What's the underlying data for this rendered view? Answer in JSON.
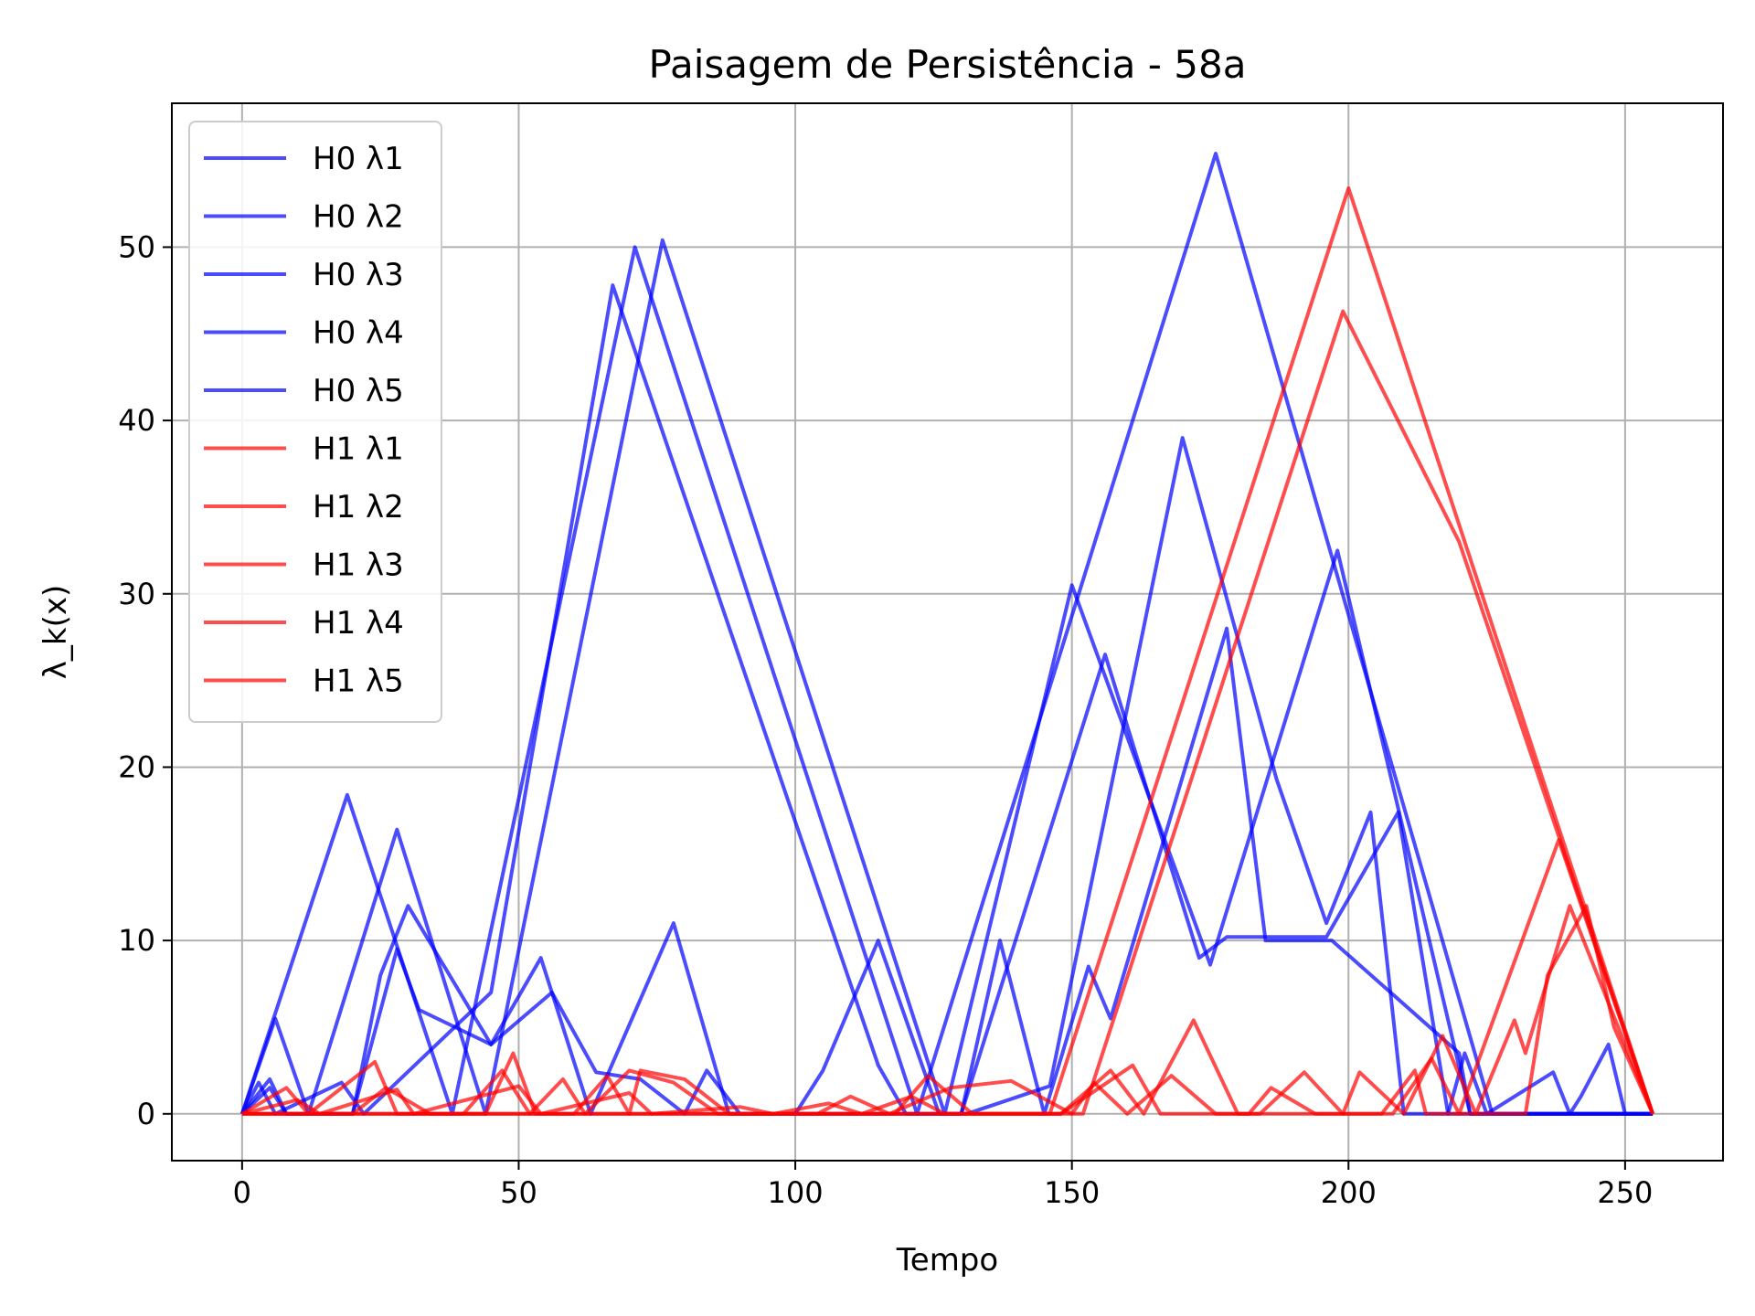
{
  "chart_data": {
    "type": "line",
    "title": "Paisagem de Persistência - 58a",
    "xlabel": "Tempo",
    "ylabel": "λ_k(x)",
    "xlim": [
      -12.7,
      267.7
    ],
    "ylim": [
      -2.7,
      58.3
    ],
    "xticks": [
      0,
      50,
      100,
      150,
      200,
      250
    ],
    "yticks": [
      0,
      10,
      20,
      30,
      40,
      50
    ],
    "grid": true,
    "legend_position": "upper-left",
    "colors": {
      "H0": "#0000ff",
      "H1": "#ff0000",
      "grid": "#b0b0b0",
      "axes": "#000000"
    },
    "line_opacity": 0.7,
    "series": [
      {
        "name": "H0 λ1",
        "group": "H0",
        "x": [
          0,
          19,
          38,
          71,
          122,
          176,
          226,
          255
        ],
        "y": [
          0,
          18.4,
          0,
          50,
          0,
          55.4,
          0,
          0
        ]
      },
      {
        "name": "H0 λ2",
        "group": "H0",
        "x": [
          0,
          6,
          12,
          28,
          44,
          76,
          127,
          150,
          175,
          198,
          222,
          255
        ],
        "y": [
          0,
          5.5,
          0,
          16.4,
          0,
          50.4,
          0,
          30.5,
          8.6,
          32.5,
          0,
          0
        ]
      },
      {
        "name": "H0 λ3",
        "group": "H0",
        "x": [
          0,
          3,
          6,
          18,
          22,
          45,
          67,
          115,
          120,
          126,
          130,
          156,
          173,
          178,
          196,
          209,
          218,
          255
        ],
        "y": [
          0,
          1.8,
          0,
          1.8,
          0,
          7,
          47.8,
          2.8,
          0,
          0,
          0,
          26.5,
          9,
          10.2,
          10.2,
          17.4,
          0,
          0
        ]
      },
      {
        "name": "H0 λ4",
        "group": "H0",
        "x": [
          0,
          5,
          8,
          20,
          28,
          32,
          45,
          54,
          63,
          78,
          88,
          100,
          105,
          115,
          126,
          131,
          146,
          170,
          187,
          196,
          204,
          210,
          212,
          214,
          216,
          218,
          221,
          225,
          237,
          240,
          242,
          247,
          250,
          255
        ],
        "y": [
          0,
          2,
          0,
          0,
          9.5,
          6,
          4,
          9,
          0,
          11,
          0,
          0,
          2.5,
          10,
          0,
          0,
          1.6,
          39,
          19.3,
          11,
          17.4,
          0,
          0,
          0,
          0,
          0,
          3.5,
          0,
          2.4,
          0,
          1,
          4,
          0,
          0
        ]
      },
      {
        "name": "H0 λ5",
        "group": "H0",
        "x": [
          0,
          5,
          8,
          20,
          25,
          30,
          45,
          56,
          64,
          72,
          80,
          84,
          90,
          100,
          104,
          110,
          130,
          137,
          145,
          153,
          157,
          178,
          185,
          197,
          220,
          222,
          225,
          238,
          245,
          255
        ],
        "y": [
          0,
          1.5,
          0,
          0,
          8,
          12,
          4,
          7,
          2.4,
          2,
          0,
          2.5,
          0,
          0,
          0,
          0,
          0,
          10,
          0,
          8.5,
          5.5,
          28,
          10,
          10,
          3.5,
          0,
          0,
          0,
          0,
          0
        ]
      },
      {
        "name": "H1 λ1",
        "group": "H1",
        "x": [
          0,
          146,
          200,
          255
        ],
        "y": [
          0,
          0,
          53.4,
          0
        ]
      },
      {
        "name": "H1 λ2",
        "group": "H1",
        "x": [
          0,
          152,
          199,
          220,
          255
        ],
        "y": [
          0,
          0,
          46.3,
          33,
          0
        ]
      },
      {
        "name": "H1 λ3",
        "group": "H1",
        "x": [
          0,
          8,
          12,
          24,
          28,
          36,
          44,
          49,
          53,
          60,
          66,
          70,
          72,
          80,
          88,
          118,
          124,
          132,
          140,
          148,
          157,
          163,
          172,
          180,
          188,
          197,
          208,
          215,
          220,
          238,
          255
        ],
        "y": [
          0,
          1.5,
          0,
          3,
          0,
          0,
          0,
          3.5,
          0,
          0,
          2.2,
          0,
          2.5,
          2,
          0,
          0,
          2.2,
          0,
          0,
          0,
          2.5,
          0,
          5.4,
          0,
          0,
          0,
          0,
          3.2,
          0,
          15.8,
          0
        ]
      },
      {
        "name": "H1 λ4",
        "group": "H1",
        "x": [
          0,
          20,
          26,
          34,
          40,
          47,
          52,
          58,
          62,
          70,
          78,
          86,
          104,
          110,
          117,
          128,
          139,
          150,
          154,
          160,
          168,
          176,
          184,
          192,
          199,
          202,
          210,
          217,
          223,
          230,
          232,
          240,
          255
        ],
        "y": [
          0,
          0,
          1.5,
          0,
          0,
          2.5,
          0,
          2,
          0,
          2.5,
          1.8,
          0,
          0,
          1,
          0,
          1.5,
          1.9,
          0,
          1.8,
          0,
          2.2,
          0,
          0,
          2.4,
          0,
          2.4,
          0,
          4.5,
          0,
          5.4,
          3.5,
          12,
          0
        ]
      },
      {
        "name": "H1 λ5",
        "group": "H1",
        "x": [
          0,
          10,
          14,
          28,
          31,
          50,
          54,
          70,
          74,
          90,
          96,
          106,
          112,
          121,
          127,
          140,
          148,
          161,
          166,
          174,
          182,
          186,
          194,
          206,
          212,
          214,
          220,
          232,
          236,
          243,
          248,
          255
        ],
        "y": [
          0,
          0.8,
          0,
          1.4,
          0,
          1.6,
          0,
          1.2,
          0,
          0.4,
          0,
          0.6,
          0,
          1,
          0,
          0,
          0,
          2.8,
          0,
          0,
          0,
          1.5,
          0,
          0,
          2.5,
          0,
          0,
          0,
          8,
          12,
          5,
          0
        ]
      }
    ]
  }
}
